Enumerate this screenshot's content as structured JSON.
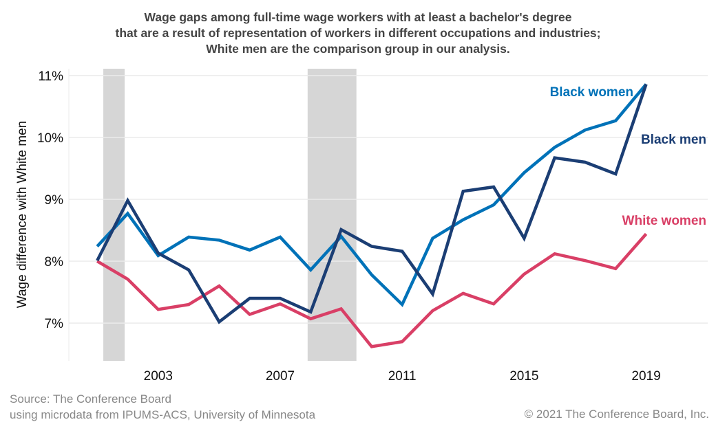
{
  "chart_data": {
    "type": "line",
    "title_lines": [
      "Wage gaps among full-time wage workers with at least a bachelor's degree",
      "that are a result of representation of workers in different occupations and industries;",
      "White men are the comparison group in our analysis."
    ],
    "ylabel": "Wage difference with White men",
    "xlabel": "",
    "x": [
      2001,
      2002,
      2003,
      2004,
      2005,
      2006,
      2007,
      2008,
      2009,
      2010,
      2011,
      2012,
      2013,
      2014,
      2015,
      2016,
      2017,
      2018,
      2019
    ],
    "xlim": [
      2000.07,
      2021.02
    ],
    "ylim": [
      6.39,
      11.11
    ],
    "x_ticks": [
      2003,
      2007,
      2011,
      2015,
      2019
    ],
    "x_tick_labels": [
      "2003",
      "2007",
      "2011",
      "2015",
      "2019"
    ],
    "y_ticks": [
      7,
      8,
      9,
      10,
      11
    ],
    "y_tick_labels": [
      "7%",
      "8%",
      "9%",
      "10%",
      "11%"
    ],
    "grid": true,
    "shaded_periods": [
      [
        2001.2,
        2001.9
      ],
      [
        2007.9,
        2009.5
      ]
    ],
    "shade_color": "#d6d6d6",
    "series": [
      {
        "name": "Black women",
        "color": "#0072b8",
        "values": [
          8.24,
          8.77,
          8.09,
          8.39,
          8.34,
          8.18,
          8.39,
          7.86,
          8.4,
          7.78,
          7.3,
          8.37,
          8.67,
          8.91,
          9.43,
          9.84,
          10.12,
          10.27,
          10.86
        ]
      },
      {
        "name": "Black men",
        "color": "#1b3e74",
        "values": [
          8.01,
          8.98,
          8.13,
          7.86,
          7.02,
          7.4,
          7.4,
          7.18,
          8.51,
          8.24,
          8.16,
          7.47,
          9.13,
          9.2,
          8.37,
          9.67,
          9.6,
          9.41,
          10.86
        ]
      },
      {
        "name": "White women",
        "color": "#d93f66",
        "values": [
          8.0,
          7.71,
          7.22,
          7.3,
          7.6,
          7.14,
          7.31,
          7.07,
          7.23,
          6.62,
          6.7,
          7.2,
          7.48,
          7.31,
          7.79,
          8.12,
          8.01,
          7.88,
          8.44
        ]
      }
    ],
    "legend_placement": "inline-labels-right"
  },
  "source": [
    "Source: The Conference Board",
    "using microdata from IPUMS-ACS, University of Minnesota"
  ],
  "copyright": "© 2021 The Conference Board, Inc."
}
